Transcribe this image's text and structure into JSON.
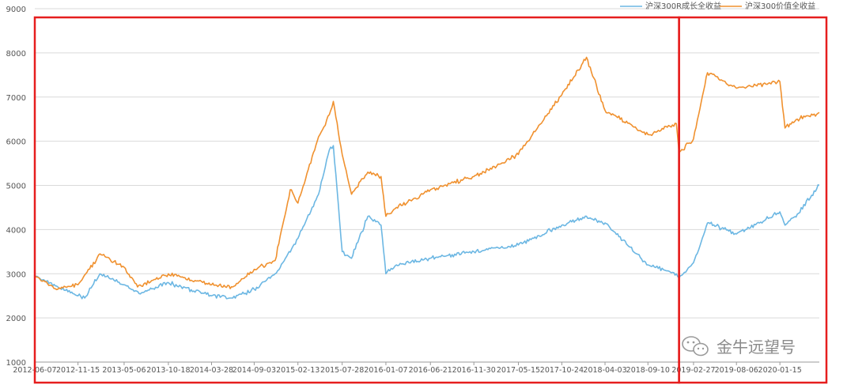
{
  "chart_data": {
    "type": "line",
    "title": "",
    "xlabel": "",
    "ylabel": "",
    "ylim": [
      1000,
      9000
    ],
    "y_ticks": [
      1000,
      2000,
      3000,
      4000,
      5000,
      6000,
      7000,
      8000,
      9000
    ],
    "x_tick_labels": [
      "2012-06-07",
      "2012-11-15",
      "2013-05-06",
      "2013-10-18",
      "2014-03-28",
      "2014-09-03",
      "2015-02-13",
      "2015-07-28",
      "2016-01-07",
      "2016-06-21",
      "2016-11-30",
      "2017-05-15",
      "2017-10-24",
      "2018-04-03",
      "2018-09-10",
      "2019-02-27",
      "2019-08-06",
      "2020-01-15"
    ],
    "x_range": [
      "2012-06-07",
      "2020-06-10"
    ],
    "grid": "horizontal",
    "legend_position": "top-right",
    "series": [
      {
        "name": "沪深300R成长全收益",
        "color": "#6cb7e3",
        "x": [
          "2012-06-07",
          "2012-09-01",
          "2012-11-15",
          "2012-12-10",
          "2013-02-05",
          "2013-05-06",
          "2013-07-01",
          "2013-10-18",
          "2014-03-28",
          "2014-06-15",
          "2014-09-03",
          "2014-11-20",
          "2015-02-13",
          "2015-05-01",
          "2015-06-10",
          "2015-06-25",
          "2015-07-28",
          "2015-09-01",
          "2015-11-01",
          "2015-12-20",
          "2016-01-07",
          "2016-02-15",
          "2016-06-21",
          "2016-11-30",
          "2017-05-15",
          "2017-10-24",
          "2018-01-24",
          "2018-04-03",
          "2018-09-10",
          "2018-12-25",
          "2019-01-04",
          "2019-02-27",
          "2019-04-20",
          "2019-08-06",
          "2020-01-15",
          "2020-02-03",
          "2020-03-20",
          "2020-06-10"
        ],
        "y": [
          2950,
          2700,
          2500,
          2450,
          3000,
          2750,
          2550,
          2800,
          2500,
          2450,
          2650,
          3000,
          3800,
          4800,
          5800,
          5900,
          3500,
          3350,
          4300,
          4100,
          3000,
          3200,
          3350,
          3500,
          3650,
          4100,
          4300,
          4150,
          3200,
          3000,
          2900,
          3250,
          4150,
          3900,
          4400,
          4100,
          4350,
          5000
        ]
      },
      {
        "name": "沪深300价值全收益",
        "color": "#f0912f",
        "x": [
          "2012-06-07",
          "2012-09-01",
          "2012-11-15",
          "2013-02-05",
          "2013-05-06",
          "2013-06-25",
          "2013-10-18",
          "2014-03-28",
          "2014-06-15",
          "2014-09-03",
          "2014-11-20",
          "2015-01-15",
          "2015-02-13",
          "2015-05-01",
          "2015-06-10",
          "2015-06-25",
          "2015-07-28",
          "2015-09-01",
          "2015-11-01",
          "2015-12-20",
          "2016-01-07",
          "2016-02-15",
          "2016-06-21",
          "2016-11-30",
          "2017-05-15",
          "2017-10-24",
          "2018-01-24",
          "2018-04-03",
          "2018-09-10",
          "2018-12-25",
          "2019-01-04",
          "2019-02-27",
          "2019-04-20",
          "2019-08-06",
          "2020-01-15",
          "2020-02-03",
          "2020-03-20",
          "2020-06-10"
        ],
        "y": [
          2950,
          2650,
          2750,
          3450,
          3150,
          2700,
          3000,
          2750,
          2700,
          3100,
          3300,
          4900,
          4600,
          6100,
          6600,
          6900,
          5700,
          4800,
          5300,
          5200,
          4300,
          4500,
          4900,
          5200,
          5700,
          7050,
          7900,
          6700,
          6150,
          6400,
          5750,
          6050,
          7550,
          7200,
          7350,
          6300,
          6500,
          6650
        ]
      }
    ]
  },
  "watermark": {
    "text": "金牛远望号",
    "icon": "wechat-icon"
  },
  "annotations": {
    "highlight_color": "#e61e1e",
    "boxes": [
      {
        "from": "2012-06-07",
        "to": "2019-01-04"
      },
      {
        "from": "2019-01-04",
        "to": "2020-06-10"
      }
    ]
  }
}
